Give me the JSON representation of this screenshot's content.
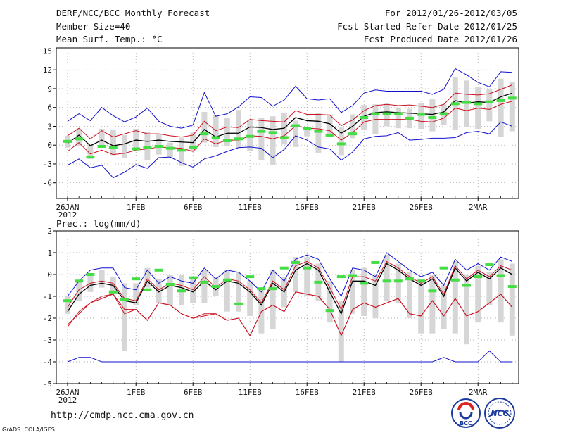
{
  "header": {
    "title": "DERF/NCC/BCC Monthly Forecast",
    "member_size": "Member Size=40",
    "variable": "Mean Surf. Temp.: °C",
    "period": "For 2012/01/26-2012/03/05",
    "fcst_started": "Fcst Started Refer Date 2012/01/25",
    "fcst_produced": "Fcst Produced Date 2012/01/26"
  },
  "footer": {
    "url": "http://cmdp.ncc.cma.gov.cn",
    "credit": "GrADS: COLA/IGES",
    "logo_bcc_text": "BCC",
    "logo_ncc_text": "NCC"
  },
  "colors": {
    "envelope": "#1010cc",
    "spread": "#cc1020",
    "mean": "#000000",
    "member_box": "#d6d6d6",
    "marker": "#44dd44",
    "grid": "#9a9a9a"
  },
  "chart_data": [
    {
      "type": "line",
      "title": "",
      "ylabel": "Mean Surf. Temp.: °C",
      "x_day_index_range": [
        0,
        39
      ],
      "ylim": [
        -8.5,
        15.5
      ],
      "yticks": [
        -6,
        -3,
        0,
        3,
        6,
        9,
        12,
        15
      ],
      "xtick_labels": [
        {
          "day": 0,
          "label": "26JAN",
          "sub": "2012"
        },
        {
          "day": 6,
          "label": "1FEB",
          "sub": ""
        },
        {
          "day": 11,
          "label": "6FEB",
          "sub": ""
        },
        {
          "day": 16,
          "label": "11FEB",
          "sub": ""
        },
        {
          "day": 21,
          "label": "16FEB",
          "sub": ""
        },
        {
          "day": 26,
          "label": "21FEB",
          "sub": ""
        },
        {
          "day": 31,
          "label": "26FEB",
          "sub": ""
        },
        {
          "day": 36,
          "label": "2MAR",
          "sub": ""
        }
      ],
      "grid": true,
      "series": [
        {
          "name": "max",
          "style": "envelope",
          "values": [
            3.8,
            5.0,
            3.9,
            6.0,
            4.7,
            3.7,
            4.5,
            5.9,
            3.8,
            3.0,
            2.7,
            3.2,
            8.4,
            4.6,
            5.0,
            6.1,
            7.7,
            7.6,
            6.2,
            7.2,
            9.4,
            7.4,
            7.2,
            7.4,
            5.2,
            6.3,
            8.3,
            8.8,
            8.6,
            8.6,
            8.6,
            8.6,
            8.1,
            8.9,
            12.2,
            11.2,
            10.0,
            9.3,
            11.7,
            11.6,
            9.2
          ]
        },
        {
          "name": "min",
          "style": "envelope",
          "values": [
            -3.2,
            -2.2,
            -3.6,
            -3.2,
            -5.2,
            -4.3,
            -3.1,
            -3.7,
            -2.0,
            -1.9,
            -2.8,
            -3.5,
            -2.2,
            -1.7,
            -1.0,
            -0.4,
            -0.3,
            -0.5,
            -2.0,
            -0.7,
            1.5,
            0.8,
            -0.3,
            -0.6,
            -2.4,
            -1.1,
            1.0,
            1.4,
            1.5,
            2.0,
            0.8,
            0.9,
            1.1,
            1.1,
            1.2,
            2.0,
            2.2,
            1.8,
            3.7,
            3.0,
            1.8
          ]
        },
        {
          "name": "upper",
          "style": "spread",
          "values": [
            1.5,
            2.7,
            1.0,
            2.3,
            1.3,
            1.8,
            2.3,
            1.8,
            1.8,
            1.5,
            1.3,
            1.6,
            3.8,
            2.3,
            2.9,
            2.8,
            4.1,
            3.9,
            3.8,
            3.7,
            5.5,
            4.9,
            4.9,
            4.8,
            3.1,
            4.0,
            5.5,
            6.3,
            6.5,
            6.3,
            6.4,
            6.2,
            6.0,
            6.5,
            8.3,
            8.1,
            8.0,
            8.2,
            8.9,
            9.6,
            7.3
          ]
        },
        {
          "name": "lower",
          "style": "spread",
          "values": [
            -1.0,
            0.4,
            -1.4,
            -0.8,
            -1.5,
            -1.3,
            -0.8,
            -0.6,
            -0.3,
            -0.4,
            -0.5,
            -1.0,
            1.0,
            0.2,
            0.8,
            0.8,
            1.5,
            1.4,
            1.0,
            1.5,
            3.1,
            2.7,
            2.6,
            2.3,
            0.8,
            2.0,
            3.7,
            4.1,
            4.1,
            4.1,
            4.1,
            3.8,
            3.7,
            4.3,
            5.9,
            5.5,
            5.9,
            5.7,
            6.5,
            7.0,
            5.3
          ]
        },
        {
          "name": "ensemble mean",
          "style": "mean",
          "values": [
            0.3,
            1.6,
            -0.1,
            0.8,
            -0.1,
            0.2,
            0.8,
            0.6,
            0.8,
            0.6,
            0.5,
            0.4,
            2.5,
            1.3,
            1.9,
            1.9,
            2.9,
            2.8,
            2.5,
            2.7,
            4.4,
            3.9,
            3.8,
            3.4,
            1.9,
            3.0,
            4.6,
            5.2,
            5.3,
            5.2,
            5.1,
            5.0,
            4.9,
            5.3,
            7.1,
            6.7,
            6.9,
            6.8,
            7.7,
            8.3,
            6.3
          ]
        }
      ],
      "boxes": {
        "day_index": [
          0,
          1,
          2,
          3,
          4,
          5,
          6,
          7,
          8,
          9,
          10,
          11,
          12,
          13,
          14,
          15,
          16,
          17,
          18,
          19,
          20,
          21,
          22,
          23,
          24,
          25,
          26,
          27,
          28,
          29,
          30,
          31,
          32,
          33,
          34,
          35,
          36,
          37,
          38,
          39,
          40
        ],
        "low": [
          -0.4,
          -0.1,
          -2.2,
          -0.4,
          -1.6,
          -2.1,
          -0.7,
          -2.4,
          -1.5,
          -1.9,
          -3.3,
          -1.0,
          0.4,
          -0.3,
          -0.1,
          -0.4,
          -0.9,
          -2.4,
          -3.2,
          0.1,
          -0.3,
          1.4,
          -1.2,
          1.3,
          -1.6,
          1.1,
          2.5,
          1.8,
          3.0,
          2.7,
          2.7,
          2.6,
          2.2,
          3.2,
          2.4,
          2.9,
          2.6,
          3.8,
          1.3,
          2.2,
          3.2
        ],
        "high": [
          1.5,
          2.6,
          0.2,
          2.6,
          2.4,
          1.6,
          2.6,
          2.1,
          1.7,
          0.4,
          1.2,
          2.0,
          5.3,
          4.8,
          4.3,
          5.6,
          4.0,
          4.4,
          4.6,
          5.1,
          3.9,
          2.9,
          5.1,
          4.9,
          2.8,
          4.9,
          6.4,
          6.5,
          6.6,
          6.0,
          5.8,
          6.7,
          7.3,
          6.5,
          10.9,
          10.3,
          9.2,
          9.0,
          10.6,
          10.0,
          8.5
        ],
        "marker": [
          0.6,
          1.0,
          -1.9,
          -0.2,
          -0.4,
          null,
          -0.6,
          -0.4,
          -0.2,
          -0.5,
          -0.8,
          -0.3,
          1.8,
          1.2,
          0.7,
          1.0,
          1.4,
          2.2,
          2.0,
          1.2,
          3.1,
          2.6,
          2.2,
          1.6,
          0.2,
          1.8,
          4.4,
          5.0,
          5.0,
          5.0,
          4.3,
          4.9,
          4.4,
          5.0,
          6.6,
          6.8,
          6.6,
          6.9,
          7.1,
          7.5,
          6.4
        ]
      }
    },
    {
      "type": "line",
      "title": "",
      "ylabel": "Prec.: log(mm/d)",
      "x_day_index_range": [
        0,
        39
      ],
      "ylim": [
        -5,
        2
      ],
      "yticks": [
        -5,
        -4,
        -3,
        -2,
        -1,
        0,
        1,
        2
      ],
      "xtick_labels": [
        {
          "day": 0,
          "label": "26JAN",
          "sub": "2012"
        },
        {
          "day": 6,
          "label": "1FEB",
          "sub": ""
        },
        {
          "day": 11,
          "label": "6FEB",
          "sub": ""
        },
        {
          "day": 16,
          "label": "11FEB",
          "sub": ""
        },
        {
          "day": 21,
          "label": "16FEB",
          "sub": ""
        },
        {
          "day": 26,
          "label": "21FEB",
          "sub": ""
        },
        {
          "day": 31,
          "label": "26FEB",
          "sub": ""
        },
        {
          "day": 36,
          "label": "2MAR",
          "sub": ""
        }
      ],
      "grid": true,
      "series": [
        {
          "name": "max",
          "style": "envelope",
          "values": [
            -1.0,
            -0.3,
            0.2,
            0.3,
            0.3,
            -0.6,
            -0.7,
            0.2,
            -0.4,
            -0.1,
            -0.3,
            -0.4,
            0.3,
            -0.2,
            0.2,
            0.1,
            -0.3,
            -0.8,
            0.2,
            -0.3,
            0.7,
            0.9,
            0.7,
            -0.2,
            -1.0,
            0.3,
            0.2,
            -0.1,
            1.0,
            0.6,
            0.2,
            -0.1,
            0.1,
            -0.5,
            0.7,
            0.2,
            0.5,
            0.2,
            0.8,
            0.6,
            0.0
          ]
        },
        {
          "name": "min",
          "style": "envelope",
          "values": [
            -4.0,
            -3.8,
            -3.8,
            -4.0,
            -4.0,
            -4.0,
            -4.0,
            -4.0,
            -4.0,
            -4.0,
            -4.0,
            -4.0,
            -4.0,
            -4.0,
            -4.0,
            -4.0,
            -4.0,
            -4.0,
            -4.0,
            -4.0,
            -4.0,
            -4.0,
            -4.0,
            -4.0,
            -4.0,
            -4.0,
            -4.0,
            -4.0,
            -4.0,
            -4.0,
            -4.0,
            -4.0,
            -4.0,
            -3.8,
            -4.0,
            -4.0,
            -4.0,
            -3.5,
            -4.0,
            -4.0,
            -3.1
          ]
        },
        {
          "name": "upper",
          "style": "spread",
          "values": [
            -1.5,
            -0.7,
            -0.4,
            -0.3,
            -0.4,
            -1.1,
            -1.2,
            -0.2,
            -0.7,
            -0.4,
            -0.5,
            -0.7,
            -0.1,
            -0.6,
            -0.2,
            -0.3,
            -0.7,
            -1.3,
            -0.3,
            -0.7,
            0.4,
            0.6,
            0.3,
            -0.6,
            -1.6,
            -0.1,
            -0.1,
            -0.3,
            0.6,
            0.3,
            -0.1,
            -0.4,
            -0.1,
            -0.9,
            0.4,
            -0.2,
            0.2,
            -0.1,
            0.4,
            0.2,
            -0.3
          ]
        },
        {
          "name": "lower",
          "style": "spread",
          "values": [
            -2.3,
            -1.8,
            -1.3,
            -1.0,
            -0.9,
            -1.8,
            -1.6,
            -2.1,
            -1.3,
            -1.4,
            -1.8,
            -2.0,
            -1.8,
            -1.8,
            -2.1,
            -2.0,
            -2.8,
            -1.7,
            -1.4,
            -1.7,
            -0.8,
            -0.9,
            -1.0,
            -1.6,
            -2.8,
            -1.6,
            -1.3,
            -1.5,
            -1.3,
            -1.1,
            -1.8,
            -1.9,
            -1.2,
            -1.9,
            -1.1,
            -1.9,
            -1.7,
            -1.3,
            -0.9,
            -1.5,
            -1.0
          ]
        },
        {
          "name": "ensemble mean",
          "style": "mean",
          "values": [
            -1.7,
            -0.9,
            -0.5,
            -0.4,
            -0.5,
            -1.2,
            -1.3,
            -0.3,
            -0.8,
            -0.5,
            -0.6,
            -0.8,
            -0.3,
            -0.7,
            -0.3,
            -0.4,
            -0.8,
            -1.4,
            -0.4,
            -0.8,
            0.2,
            0.5,
            0.2,
            -0.8,
            -1.8,
            -0.3,
            -0.3,
            -0.5,
            0.5,
            0.2,
            -0.2,
            -0.5,
            -0.2,
            -1.0,
            0.3,
            -0.3,
            0.1,
            -0.2,
            0.3,
            0.0,
            -0.5
          ]
        },
        {
          "name": "lowest (red)",
          "style": "spread",
          "values": [
            -2.4,
            -1.7,
            -1.3,
            -1.1,
            -0.9,
            -1.6,
            -1.6,
            -2.1,
            -1.3,
            -1.4,
            -1.8,
            -2.0,
            -1.9,
            -1.8,
            -2.1,
            -2.0,
            -2.8,
            -1.7,
            -1.4,
            -1.7,
            -0.8,
            -0.9,
            -1.0,
            -1.6,
            -2.8,
            -1.6,
            -1.3,
            -1.5,
            -1.3,
            -1.1,
            -1.8,
            -1.9,
            -1.2,
            -1.9,
            -1.1,
            -1.9,
            -1.7,
            -1.3,
            -0.9,
            -1.5,
            -1.0
          ]
        }
      ],
      "boxes": {
        "day_index": [
          0,
          1,
          2,
          3,
          4,
          5,
          6,
          7,
          8,
          9,
          10,
          11,
          12,
          13,
          14,
          15,
          16,
          17,
          18,
          19,
          20,
          21,
          22,
          23,
          24,
          25,
          26,
          27,
          28,
          29,
          30,
          31,
          32,
          33,
          34,
          35,
          36,
          37,
          38,
          39,
          40
        ],
        "low": [
          -1.8,
          -1.2,
          -0.8,
          -0.6,
          -0.9,
          -3.5,
          -1.4,
          -0.6,
          -1.3,
          -1.4,
          -1.4,
          -1.3,
          -1.3,
          -1.0,
          -1.7,
          -1.7,
          -1.9,
          -2.7,
          -2.5,
          -1.5,
          -0.8,
          -1.0,
          -1.2,
          -2.2,
          -4.0,
          -1.8,
          -1.9,
          -2.0,
          -1.2,
          -1.3,
          -2.0,
          -2.7,
          -2.7,
          -2.5,
          -2.7,
          -3.2,
          -2.2,
          -1.4,
          -2.2,
          -2.8,
          -1.8
        ]
      },
      "boxes_note": "upper bounds per day",
      "boxes_high": [
        -1.0,
        -0.3,
        0.0,
        0.2,
        -0.1,
        -0.4,
        -0.4,
        0.3,
        -0.2,
        0.0,
        0.0,
        -0.2,
        0.2,
        -0.1,
        0.2,
        0.1,
        -0.3,
        -0.6,
        0.2,
        -0.1,
        0.8,
        0.8,
        0.5,
        -0.3,
        -1.2,
        0.2,
        0.3,
        0.0,
        0.9,
        0.5,
        0.1,
        -0.2,
        0.0,
        -0.5,
        0.6,
        0.0,
        0.4,
        0.1,
        0.7,
        0.5,
        0.0
      ],
      "boxes_marker": [
        -1.2,
        -0.3,
        0.0,
        null,
        -0.8,
        -1.15,
        -0.2,
        -0.7,
        0.2,
        -0.45,
        -0.75,
        -0.15,
        -0.35,
        -0.55,
        -0.25,
        -1.35,
        -0.1,
        -0.65,
        -0.65,
        0.3,
        0.55,
        0.3,
        -0.35,
        -1.65,
        -0.1,
        -0.05,
        -0.4,
        0.55,
        -0.3,
        -0.3,
        -0.2,
        -0.3,
        -0.75,
        0.3,
        -0.25,
        -0.5,
        -0.1,
        0.45,
        -0.05,
        -0.55,
        0.2
      ]
    }
  ]
}
